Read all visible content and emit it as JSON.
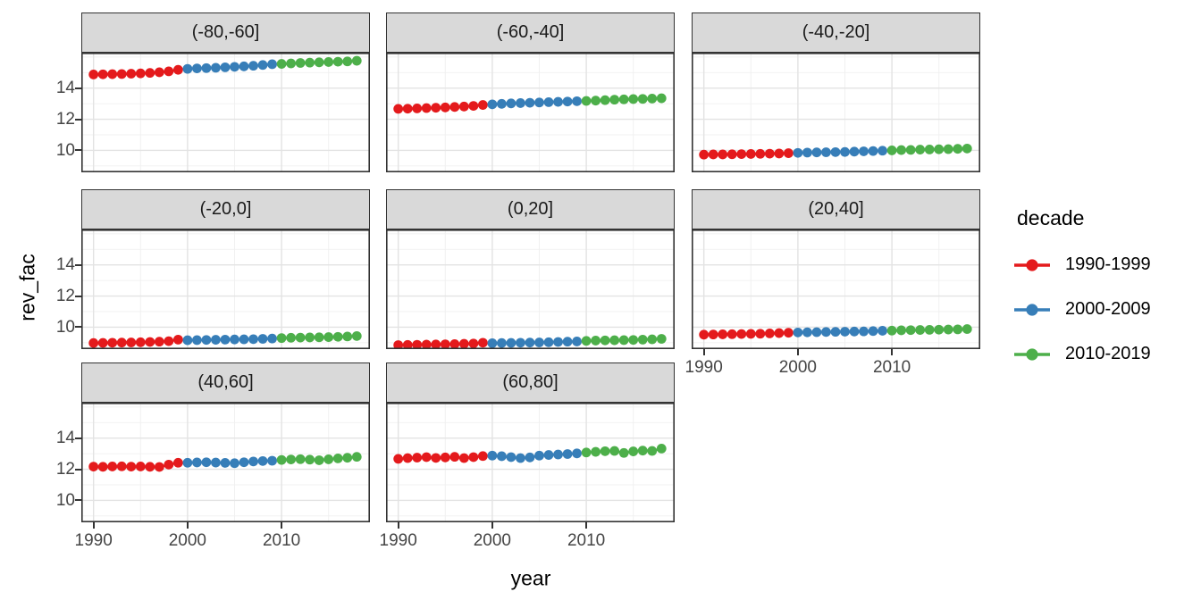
{
  "chart_data": {
    "type": "scatter",
    "title": "",
    "xlabel": "year",
    "ylabel": "rev_fac",
    "grid": true,
    "x": [
      1990,
      1991,
      1992,
      1993,
      1994,
      1995,
      1996,
      1997,
      1998,
      1999,
      2000,
      2001,
      2002,
      2003,
      2004,
      2005,
      2006,
      2007,
      2008,
      2009,
      2010,
      2011,
      2012,
      2013,
      2014,
      2015,
      2016,
      2017,
      2018
    ],
    "xlim": [
      1988.7,
      2019.4
    ],
    "ylim": [
      8.59,
      16.28
    ],
    "x_ticks": [
      1990,
      2000,
      2010
    ],
    "x_minor_ticks": [
      1995,
      2005,
      2015
    ],
    "y_ticks": [
      10,
      12,
      14
    ],
    "y_minor_ticks": [
      9,
      11,
      13,
      15,
      16
    ],
    "legend": {
      "title": "decade",
      "position": "right",
      "entries": [
        {
          "label": "1990-1999",
          "color": "#E41A1C",
          "start": 1990,
          "end": 1999
        },
        {
          "label": "2000-2009",
          "color": "#377EB8",
          "start": 2000,
          "end": 2009
        },
        {
          "label": "2010-2019",
          "color": "#4DAF4A",
          "start": 2010,
          "end": 2019
        }
      ]
    },
    "facets": [
      {
        "label": "(-80,-60]",
        "row": 0,
        "col": 0,
        "x_axis": false,
        "values": [
          14.88,
          14.89,
          14.9,
          14.91,
          14.93,
          14.95,
          14.98,
          15.02,
          15.08,
          15.18,
          15.24,
          15.27,
          15.29,
          15.31,
          15.34,
          15.37,
          15.4,
          15.44,
          15.49,
          15.54,
          15.56,
          15.59,
          15.62,
          15.64,
          15.66,
          15.68,
          15.7,
          15.72,
          15.76
        ]
      },
      {
        "label": "(-60,-40]",
        "row": 0,
        "col": 1,
        "x_axis": false,
        "values": [
          12.67,
          12.68,
          12.7,
          12.72,
          12.74,
          12.76,
          12.79,
          12.82,
          12.86,
          12.92,
          12.96,
          12.99,
          13.02,
          13.04,
          13.06,
          13.08,
          13.1,
          13.12,
          13.14,
          13.16,
          13.18,
          13.2,
          13.23,
          13.26,
          13.28,
          13.3,
          13.31,
          13.33,
          13.35
        ]
      },
      {
        "label": "(-40,-20]",
        "row": 0,
        "col": 2,
        "x_axis": false,
        "values": [
          9.73,
          9.74,
          9.74,
          9.75,
          9.76,
          9.77,
          9.78,
          9.79,
          9.8,
          9.82,
          9.84,
          9.86,
          9.87,
          9.88,
          9.89,
          9.9,
          9.92,
          9.94,
          9.96,
          9.98,
          10.0,
          10.02,
          10.03,
          10.05,
          10.06,
          10.07,
          10.08,
          10.1,
          10.12
        ]
      },
      {
        "label": "(-20,0]",
        "row": 1,
        "col": 0,
        "x_axis": false,
        "values": [
          8.98,
          8.99,
          9.0,
          9.01,
          9.02,
          9.03,
          9.05,
          9.07,
          9.1,
          9.2,
          9.16,
          9.17,
          9.18,
          9.19,
          9.2,
          9.21,
          9.22,
          9.23,
          9.25,
          9.27,
          9.3,
          9.32,
          9.33,
          9.34,
          9.35,
          9.36,
          9.38,
          9.4,
          9.43
        ]
      },
      {
        "label": "(0,20]",
        "row": 1,
        "col": 1,
        "x_axis": false,
        "values": [
          8.85,
          8.86,
          8.87,
          8.88,
          8.89,
          8.9,
          8.91,
          8.93,
          8.95,
          9.0,
          8.97,
          8.98,
          8.99,
          9.0,
          9.01,
          9.02,
          9.03,
          9.05,
          9.07,
          9.08,
          9.12,
          9.14,
          9.15,
          9.16,
          9.17,
          9.18,
          9.2,
          9.22,
          9.25
        ]
      },
      {
        "label": "(20,40]",
        "row": 1,
        "col": 2,
        "x_axis": true,
        "values": [
          9.52,
          9.53,
          9.54,
          9.55,
          9.56,
          9.57,
          9.58,
          9.6,
          9.62,
          9.64,
          9.66,
          9.67,
          9.68,
          9.69,
          9.7,
          9.71,
          9.72,
          9.73,
          9.75,
          9.77,
          9.78,
          9.8,
          9.81,
          9.82,
          9.83,
          9.84,
          9.85,
          9.86,
          9.88
        ]
      },
      {
        "label": "(40,60]",
        "row": 2,
        "col": 0,
        "x_axis": true,
        "values": [
          12.17,
          12.16,
          12.18,
          12.19,
          12.17,
          12.18,
          12.16,
          12.15,
          12.3,
          12.42,
          12.42,
          12.44,
          12.45,
          12.43,
          12.41,
          12.39,
          12.45,
          12.5,
          12.53,
          12.55,
          12.6,
          12.63,
          12.65,
          12.62,
          12.58,
          12.64,
          12.7,
          12.74,
          12.8
        ]
      },
      {
        "label": "(60,80]",
        "row": 2,
        "col": 1,
        "x_axis": true,
        "values": [
          12.67,
          12.72,
          12.75,
          12.78,
          12.73,
          12.76,
          12.8,
          12.72,
          12.78,
          12.85,
          12.88,
          12.84,
          12.78,
          12.72,
          12.76,
          12.88,
          12.92,
          12.95,
          12.98,
          13.02,
          13.08,
          13.12,
          13.16,
          13.18,
          13.05,
          13.15,
          13.2,
          13.18,
          13.33
        ]
      }
    ],
    "style_colors": {
      "strip_fill": "#d9d9d9",
      "panel_border": "#333333",
      "grid_major": "#e3e3e3",
      "grid_minor": "#f0f0f0",
      "tick_text": "#454545"
    }
  }
}
